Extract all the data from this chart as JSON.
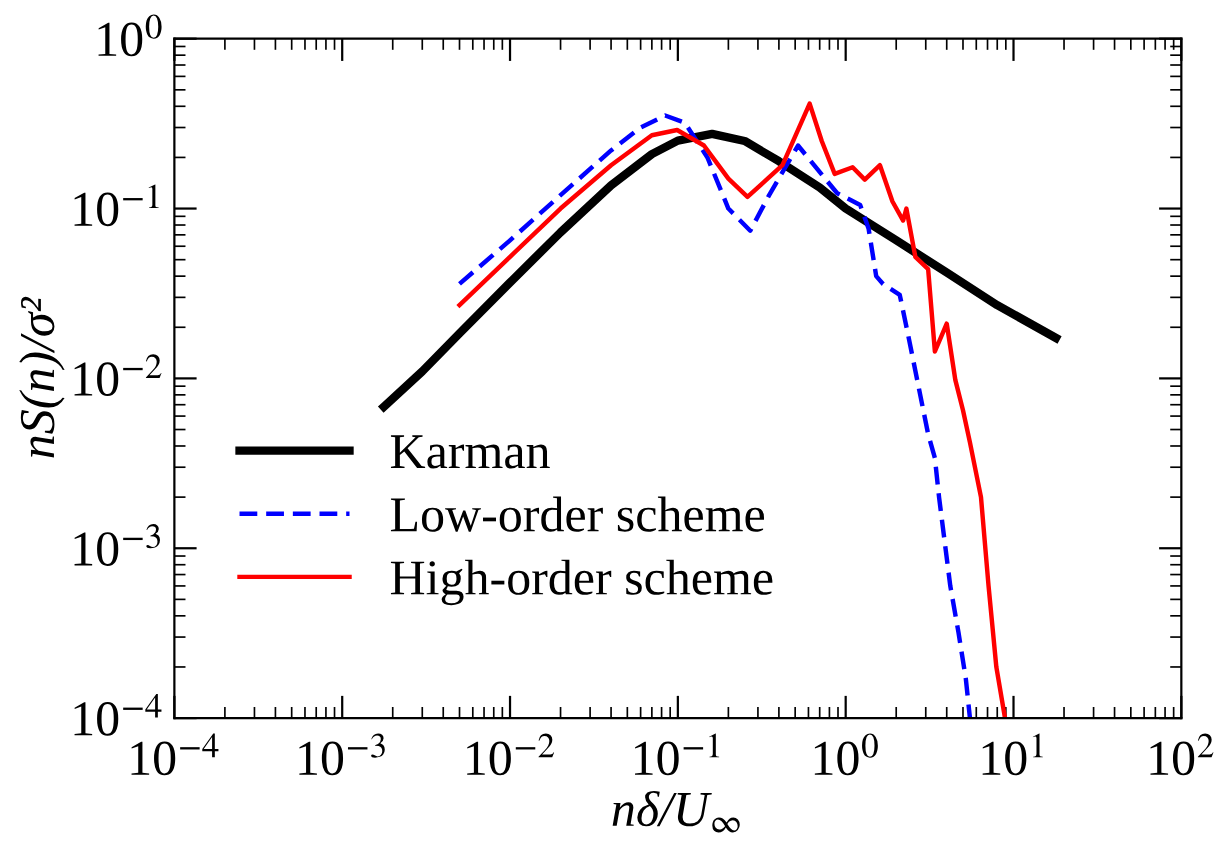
{
  "chart_data": {
    "type": "line",
    "xlabel": "nδ/U$_{∞}$",
    "ylabel": "nS(n)/σ²",
    "log": "xy",
    "grid": false,
    "legend": "bottom left",
    "marker": "none",
    "xlim": [
      0.0001,
      100
    ],
    "ylim": [
      0.0001,
      1
    ],
    "xticks": [
      {
        "value": 0.0001,
        "label": "10$^{−4}$"
      },
      {
        "value": 0.001,
        "label": "10$^{−3}$"
      },
      {
        "value": 0.01,
        "label": "10$^{−2}$"
      },
      {
        "value": 0.1,
        "label": "10$^{−1}$"
      },
      {
        "value": 1,
        "label": "10$^{0}$"
      },
      {
        "value": 10,
        "label": "10$^{1}$"
      },
      {
        "value": 100,
        "label": "10$^{2}$"
      }
    ],
    "yticks": [
      {
        "value": 0.0001,
        "label": "10$^{−4}$"
      },
      {
        "value": 0.001,
        "label": "10$^{−3}$"
      },
      {
        "value": 0.01,
        "label": "10$^{−2}$"
      },
      {
        "value": 0.1,
        "label": "10$^{−1}$"
      },
      {
        "value": 1,
        "label": "10$^{0}$"
      }
    ],
    "series": [
      {
        "name": "Karman",
        "color": "#000000",
        "line_style": "solid",
        "x": [
          0.00177,
          0.003,
          0.005,
          0.01,
          0.02,
          0.04,
          0.07,
          0.1,
          0.16,
          0.25,
          0.4,
          0.7,
          1,
          2,
          4,
          8,
          17.9
        ],
        "values": [
          0.0068,
          0.011,
          0.0184,
          0.0367,
          0.0724,
          0.137,
          0.209,
          0.251,
          0.275,
          0.25,
          0.19,
          0.133,
          0.1,
          0.065,
          0.042,
          0.027,
          0.0173
        ]
      },
      {
        "name": "Low-order scheme",
        "color": "#0000ff",
        "line_style": "dashed",
        "x": [
          0.005,
          0.01,
          0.02,
          0.04,
          0.06,
          0.084,
          0.11,
          0.15,
          0.2,
          0.27,
          0.35,
          0.52,
          0.68,
          0.89,
          1.22,
          1.37,
          1.52,
          1.67,
          2.1,
          2.33,
          2.78,
          3.1,
          3.4,
          3.6,
          4.2,
          4.7,
          5.2,
          5.5
        ],
        "values": [
          0.036,
          0.065,
          0.12,
          0.22,
          0.3,
          0.353,
          0.32,
          0.2,
          0.1,
          0.074,
          0.12,
          0.235,
          0.17,
          0.123,
          0.105,
          0.076,
          0.04,
          0.036,
          0.031,
          0.019,
          0.008,
          0.0047,
          0.0034,
          0.002,
          0.0006,
          0.00032,
          0.00017,
          0.0001
        ]
      },
      {
        "name": "High-order scheme",
        "color": "#ff0000",
        "line_style": "solid",
        "x": [
          0.005,
          0.01,
          0.02,
          0.04,
          0.07,
          0.099,
          0.143,
          0.2,
          0.26,
          0.42,
          0.61,
          0.72,
          0.86,
          1.1,
          1.3,
          1.6,
          1.9,
          2.2,
          2.3,
          2.6,
          3.1,
          3.4,
          4.0,
          4.5,
          5.0,
          5.5,
          6.4,
          7.1,
          7.9,
          8.9
        ],
        "values": [
          0.027,
          0.052,
          0.1,
          0.18,
          0.27,
          0.29,
          0.235,
          0.15,
          0.117,
          0.18,
          0.415,
          0.25,
          0.16,
          0.175,
          0.148,
          0.18,
          0.11,
          0.085,
          0.1,
          0.052,
          0.044,
          0.0144,
          0.021,
          0.0098,
          0.0065,
          0.0042,
          0.002,
          0.0006,
          0.0002,
          0.0001
        ]
      }
    ]
  }
}
